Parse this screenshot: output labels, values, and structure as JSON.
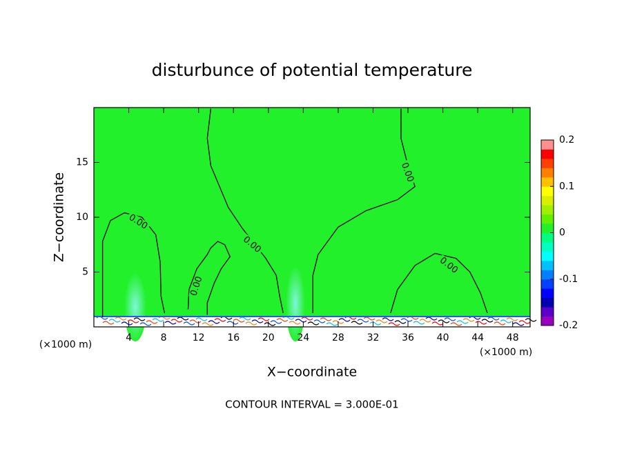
{
  "chart_data": {
    "type": "contour",
    "title": "disturbunce of potential temperature",
    "xlabel": "X−coordinate",
    "ylabel": "Z−coordinate",
    "unit_labels": [
      "(×1000 m)",
      "(×1000 m)"
    ],
    "footer": "CONTOUR INTERVAL = 3.000E-01",
    "xlim": [
      0,
      50
    ],
    "ylim": [
      0,
      20
    ],
    "xticks": [
      4,
      8,
      12,
      16,
      20,
      24,
      28,
      32,
      36,
      40,
      44,
      48
    ],
    "yticks": [
      5,
      10,
      15
    ],
    "fill_color": "#22f02a",
    "clim": [
      -0.2,
      0.2
    ],
    "cticks": [
      -0.2,
      -0.1,
      0,
      0.1,
      0.2
    ],
    "colors": [
      "#9a00c0",
      "#5a00c8",
      "#0000b0",
      "#0000ff",
      "#0040ff",
      "#0080ff",
      "#00c0ff",
      "#00ffff",
      "#00ffc0",
      "#00ff80",
      "#22f02a",
      "#60f000",
      "#a0f000",
      "#d8f000",
      "#ffff00",
      "#ffc000",
      "#ff8000",
      "#ff4000",
      "#ff0000",
      "#ff9090"
    ],
    "contours": [
      {
        "level": {
          "value": 0,
          "label": "0.00"
        },
        "x": [
          1,
          1,
          1.9,
          3.5,
          5.5,
          7.1,
          7.6,
          7.7,
          8.1
        ],
        "y": [
          0.9,
          7.8,
          9.7,
          10.4,
          10,
          8.4,
          5.9,
          2.8,
          1.25
        ]
      },
      {
        "level": {
          "value": 0,
          "label": "0.00"
        },
        "x": [
          10.8,
          10.9,
          11.8,
          13,
          13.4,
          14.2,
          15,
          15.6,
          14.6,
          13.8,
          13,
          13
        ],
        "y": [
          1.6,
          3.4,
          5.3,
          6.6,
          7.2,
          7.8,
          7.5,
          6.4,
          5.3,
          4,
          2.2,
          1.1
        ]
      },
      {
        "level": {
          "value": 0,
          "label": "0.00"
        },
        "x": [
          13.4,
          13,
          13.4,
          15.4,
          17,
          19.7,
          20.9,
          21.3,
          21.7
        ],
        "y": [
          19.9,
          17.2,
          14.7,
          10.9,
          9,
          6.25,
          4.7,
          2.8,
          1.25
        ]
      },
      {
        "level": {
          "value": 0,
          "label": "0.00"
        },
        "x": [
          25.1,
          25.1,
          25.7,
          28,
          31.2,
          34.8,
          36.8,
          36,
          35.2,
          35.2
        ],
        "y": [
          1.25,
          4.7,
          6.6,
          9.1,
          10.6,
          11.6,
          12.8,
          14.7,
          17.2,
          19.9
        ]
      },
      {
        "level": {
          "value": 0,
          "label": "0.00"
        },
        "x": [
          34,
          34.8,
          36.8,
          39.1,
          41.5,
          43.1,
          44.3,
          45.1
        ],
        "y": [
          1.25,
          3.4,
          5.6,
          6.7,
          6.25,
          5,
          3.1,
          1.25
        ]
      }
    ]
  }
}
